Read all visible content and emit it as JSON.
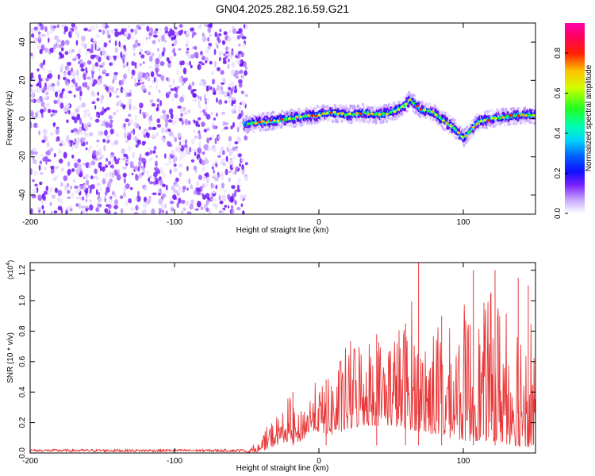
{
  "title": "GN04.2025.282.16.59.G21",
  "chart_data": [
    {
      "type": "heatmap",
      "title": "GN04.2025.282.16.59.G21",
      "xlabel": "Height of straight line (km)",
      "ylabel": "Frequency (Hz)",
      "xlim": [
        -200,
        150
      ],
      "ylim": [
        -50,
        50
      ],
      "xticks": [
        -200,
        -100,
        0,
        100
      ],
      "yticks": [
        -40,
        -20,
        0,
        20,
        40
      ],
      "colorbar": {
        "label": "Normalized spectral amplitude",
        "range": [
          0,
          0.95
        ],
        "ticks": [
          0.0,
          0.2,
          0.4,
          0.6,
          0.8
        ]
      },
      "signal_ridge": {
        "x": [
          -52,
          -40,
          -30,
          -20,
          -10,
          0,
          10,
          20,
          30,
          40,
          50,
          55,
          60,
          63,
          66,
          70,
          80,
          85,
          90,
          95,
          100,
          103,
          110,
          120,
          130,
          140,
          150
        ],
        "frequency": [
          -3,
          -2,
          -1,
          0,
          1,
          2,
          3,
          2,
          3,
          2,
          3,
          5,
          7,
          10,
          8,
          5,
          3,
          0,
          -3,
          -6,
          -10,
          -8,
          -2,
          0,
          1,
          2,
          2
        ]
      },
      "noise_region_x": [
        -200,
        -50
      ],
      "signal_region_x": [
        -52,
        150
      ],
      "grid": false
    },
    {
      "type": "line",
      "xlabel": "Height of straight line (km)",
      "ylabel": "SNR (10 * v/v)",
      "y_multiplier": "(x10",
      "y_multiplier_exp": "4",
      "xlim": [
        -200,
        150
      ],
      "ylim": [
        0,
        1.25
      ],
      "xticks": [
        -200,
        -100,
        0,
        100
      ],
      "yticks": [
        0.0,
        0.2,
        0.4,
        0.6,
        0.8,
        1.0,
        1.2
      ],
      "color": "#e8393a",
      "envelope": {
        "x": [
          -200,
          -50,
          -40,
          -35,
          -30,
          -25,
          -20,
          -15,
          -10,
          -5,
          0,
          5,
          10,
          20,
          30,
          40,
          50,
          60,
          65,
          70,
          80,
          90,
          100,
          110,
          120,
          130,
          140,
          150
        ],
        "y_min": [
          0.0,
          0.0,
          0.01,
          0.03,
          0.05,
          0.07,
          0.07,
          0.06,
          0.1,
          0.15,
          0.14,
          0.12,
          0.12,
          0.15,
          0.18,
          0.18,
          0.18,
          0.16,
          0.15,
          0.14,
          0.12,
          0.1,
          0.08,
          0.08,
          0.08,
          0.06,
          0.04,
          0.04
        ],
        "y_max": [
          0.03,
          0.03,
          0.08,
          0.22,
          0.25,
          0.3,
          0.4,
          0.25,
          0.38,
          0.45,
          0.48,
          0.5,
          0.6,
          0.8,
          0.9,
          0.85,
          0.9,
          0.95,
          1.05,
          0.8,
          0.95,
          0.9,
          1.1,
          1.0,
          1.2,
          1.1,
          1.15,
          1.05
        ]
      },
      "peaks": [
        {
          "x": 69,
          "y": 1.25
        },
        {
          "x": 107,
          "y": 1.2
        },
        {
          "x": 122,
          "y": 1.2
        },
        {
          "x": 138,
          "y": 1.15
        },
        {
          "x": 145,
          "y": 1.1
        },
        {
          "x": 60,
          "y": 0.85
        },
        {
          "x": 40,
          "y": 0.78
        },
        {
          "x": 85,
          "y": 0.9
        },
        {
          "x": 5,
          "y": 0.48
        },
        {
          "x": -18,
          "y": 0.4
        }
      ],
      "grid": false
    }
  ]
}
